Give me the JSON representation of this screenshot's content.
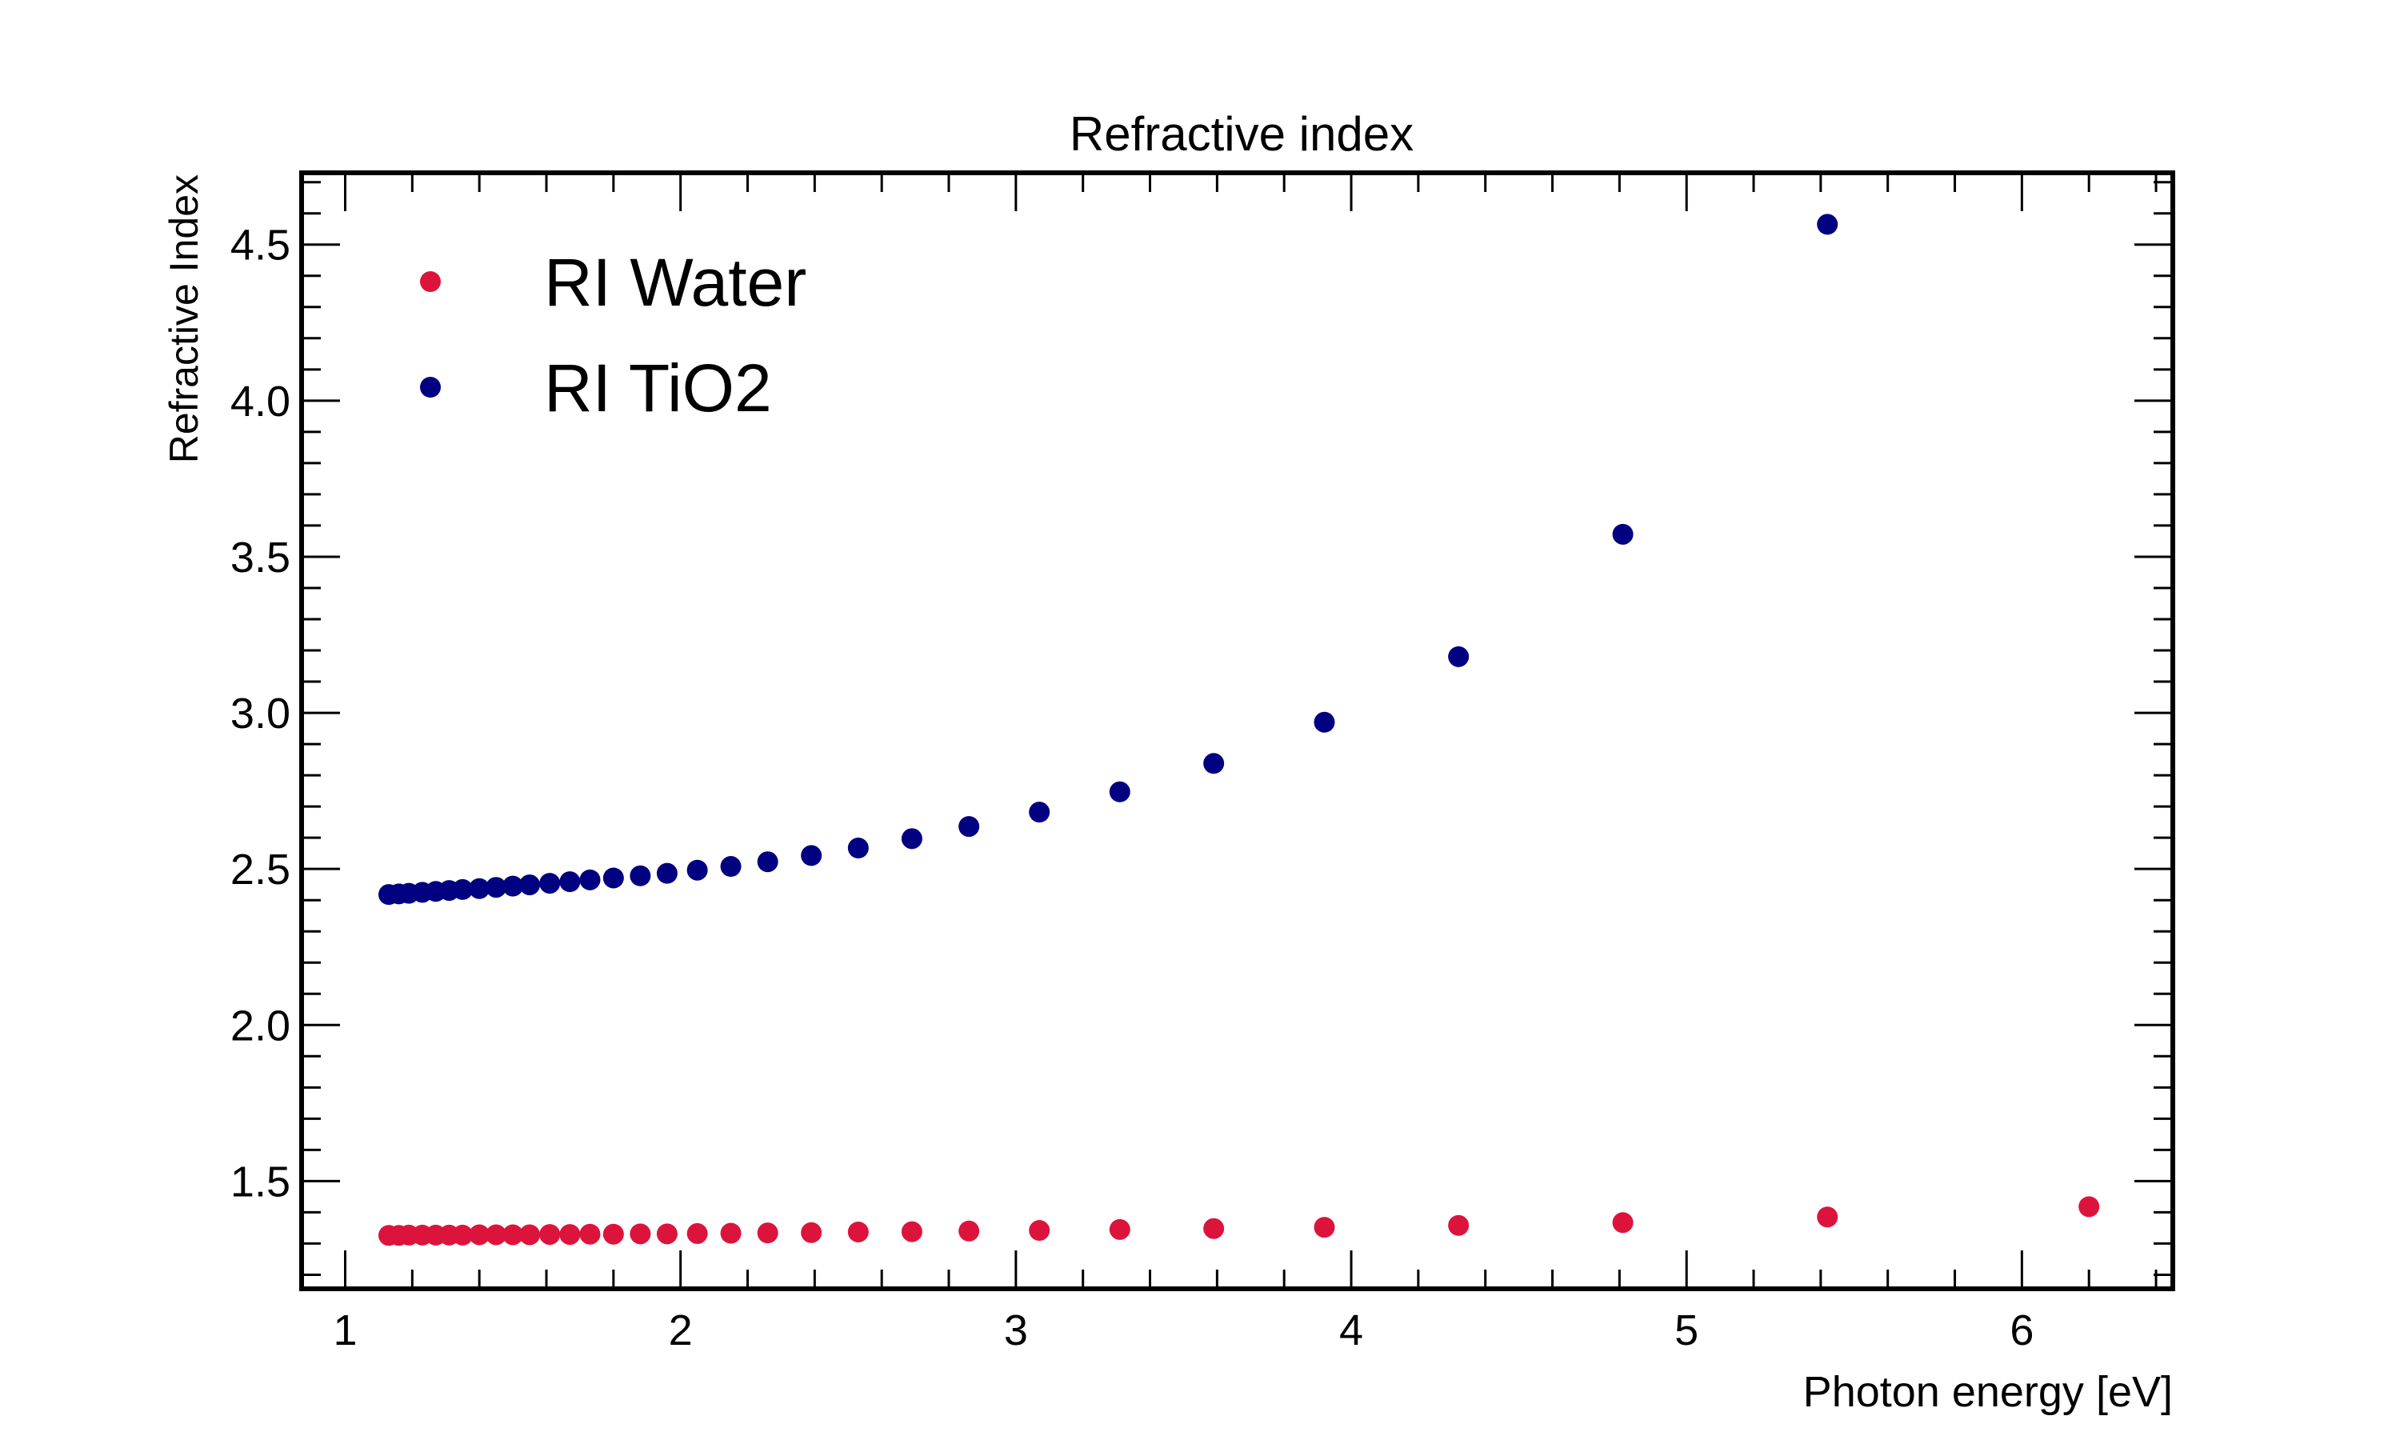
{
  "chart_data": {
    "type": "scatter",
    "title": "Refractive index",
    "xlabel": "Photon energy [eV]",
    "ylabel": "Refractive Index",
    "xlim": [
      0.87,
      6.45
    ],
    "ylim": [
      1.155,
      4.73
    ],
    "xticks": [
      "1",
      "2",
      "3",
      "4",
      "5",
      "6"
    ],
    "yticks": [
      "1.5",
      "2.0",
      "2.5",
      "3.0",
      "3.5",
      "4.0",
      "4.5"
    ],
    "grid": false,
    "legend": "top-left",
    "series": [
      {
        "name": "RI Water",
        "color": "#dc143c",
        "x": [
          1.13,
          1.16,
          1.19,
          1.23,
          1.27,
          1.31,
          1.35,
          1.4,
          1.45,
          1.5,
          1.55,
          1.61,
          1.67,
          1.73,
          1.8,
          1.88,
          1.96,
          2.05,
          2.15,
          2.26,
          2.39,
          2.53,
          2.69,
          2.86,
          3.07,
          3.31,
          3.59,
          3.92,
          4.32,
          4.81,
          5.42,
          6.2
        ],
        "y": [
          1.326,
          1.326,
          1.327,
          1.327,
          1.327,
          1.327,
          1.327,
          1.328,
          1.328,
          1.328,
          1.328,
          1.329,
          1.329,
          1.33,
          1.33,
          1.331,
          1.331,
          1.332,
          1.333,
          1.334,
          1.335,
          1.337,
          1.338,
          1.34,
          1.342,
          1.345,
          1.348,
          1.352,
          1.358,
          1.367,
          1.385,
          1.418
        ]
      },
      {
        "name": "RI TiO2",
        "color": "#000080",
        "x": [
          1.13,
          1.16,
          1.19,
          1.23,
          1.27,
          1.31,
          1.35,
          1.4,
          1.45,
          1.5,
          1.55,
          1.61,
          1.67,
          1.73,
          1.8,
          1.88,
          1.96,
          2.05,
          2.15,
          2.26,
          2.39,
          2.53,
          2.69,
          2.86,
          3.07,
          3.31,
          3.59,
          3.92,
          4.32,
          4.81,
          5.42
        ],
        "y": [
          2.418,
          2.42,
          2.422,
          2.425,
          2.428,
          2.431,
          2.434,
          2.437,
          2.441,
          2.445,
          2.449,
          2.454,
          2.459,
          2.465,
          2.471,
          2.478,
          2.486,
          2.496,
          2.508,
          2.523,
          2.543,
          2.567,
          2.597,
          2.636,
          2.682,
          2.747,
          2.838,
          2.97,
          3.18,
          3.572,
          4.565
        ]
      }
    ]
  }
}
